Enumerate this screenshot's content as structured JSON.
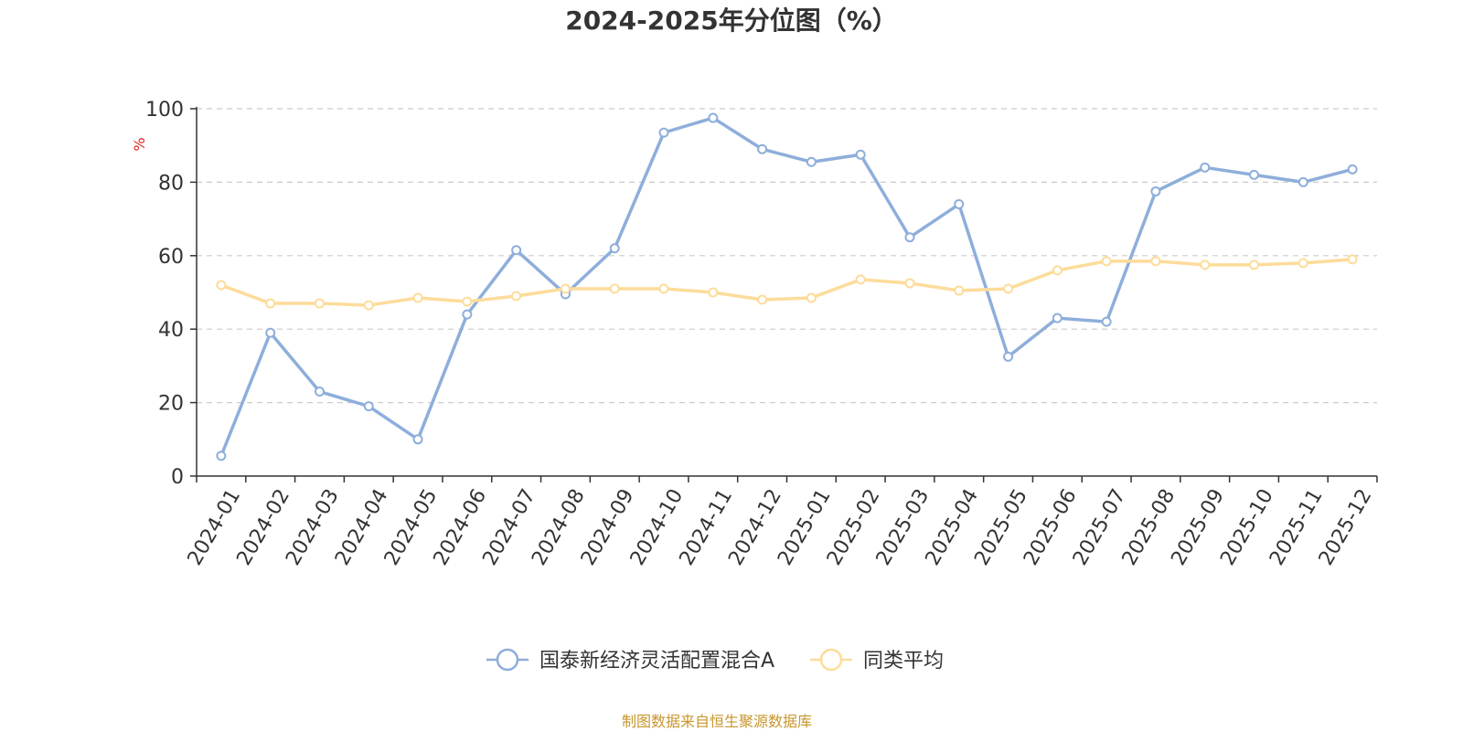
{
  "chart_data": {
    "type": "line",
    "title": "2024-2025年分位图（%）",
    "ylabel": "%",
    "ylim": [
      0,
      100
    ],
    "yticks": [
      0,
      20,
      40,
      60,
      80,
      100
    ],
    "grid": true,
    "legend_position": "bottom",
    "categories": [
      "2024-01",
      "2024-02",
      "2024-03",
      "2024-04",
      "2024-05",
      "2024-06",
      "2024-07",
      "2024-08",
      "2024-09",
      "2024-10",
      "2024-11",
      "2024-12",
      "2025-01",
      "2025-02",
      "2025-03",
      "2025-04",
      "2025-05",
      "2025-06",
      "2025-07",
      "2025-08",
      "2025-09",
      "2025-10",
      "2025-11",
      "2025-12"
    ],
    "series": [
      {
        "name": "国泰新经济灵活配置混合A",
        "color": "#8eaedb",
        "values": [
          5.5,
          39,
          23,
          19,
          10,
          44,
          61.5,
          49.5,
          62,
          93.5,
          97.5,
          89,
          85.5,
          87.5,
          65,
          74,
          32.5,
          43,
          42,
          77.5,
          84,
          82,
          80,
          83.5
        ]
      },
      {
        "name": "同类平均",
        "color": "#fddc9a",
        "values": [
          52,
          47,
          47,
          46.5,
          48.5,
          47.5,
          49,
          51,
          51,
          51,
          50,
          48,
          48.5,
          53.5,
          52.5,
          50.5,
          51,
          56,
          58.5,
          58.5,
          57.5,
          57.5,
          58,
          59
        ]
      }
    ],
    "source": "制图数据来自恒生聚源数据库"
  }
}
